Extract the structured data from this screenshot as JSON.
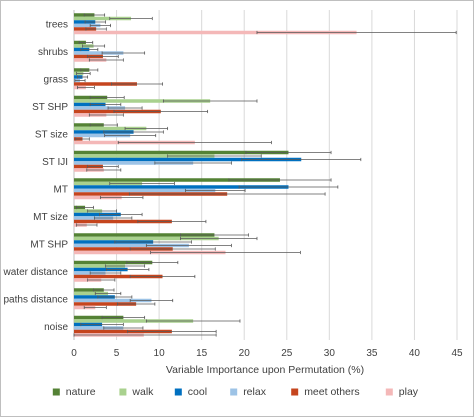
{
  "chart_data": {
    "type": "bar",
    "orientation": "horizontal",
    "title": "",
    "xlabel": "Variable Importance upon Permutation (%)",
    "ylabel": "",
    "xlim": [
      0,
      45
    ],
    "xticks": [
      0,
      5,
      10,
      15,
      20,
      25,
      30,
      35,
      40,
      45
    ],
    "grid": "vertical",
    "legend": "bottom",
    "categories": [
      "trees",
      "shrubs",
      "grass",
      "ST SHP",
      "ST size",
      "ST IJI",
      "MT",
      "MT size",
      "MT SHP",
      "water distance",
      "paths distance",
      "noise"
    ],
    "series": [
      {
        "name": "nature",
        "color": "#548235",
        "values": [
          2.4,
          1.4,
          1.8,
          3.9,
          3.5,
          25.2,
          24.2,
          1.3,
          16.5,
          9.2,
          3.5,
          5.8
        ],
        "errors": [
          1.2,
          0.8,
          1.0,
          2.0,
          1.6,
          5.0,
          6.0,
          1.0,
          4.0,
          3.0,
          1.2,
          2.5
        ]
      },
      {
        "name": "walk",
        "color": "#A9D18E",
        "values": [
          6.7,
          2.3,
          1.1,
          16.0,
          8.5,
          16.5,
          8.0,
          3.3,
          17.0,
          6.0,
          4.0,
          14.0
        ],
        "errors": [
          2.5,
          1.3,
          0.8,
          5.5,
          2.5,
          5.5,
          3.8,
          1.7,
          4.5,
          2.3,
          1.5,
          5.5
        ]
      },
      {
        "name": "cool",
        "color": "#0070C0",
        "values": [
          2.5,
          1.8,
          1.0,
          3.7,
          7.0,
          26.7,
          25.2,
          5.5,
          9.3,
          6.3,
          4.8,
          3.3
        ],
        "errors": [
          1.2,
          1.0,
          0.6,
          1.8,
          3.5,
          7.0,
          5.8,
          2.5,
          4.5,
          2.5,
          2.0,
          2.5
        ]
      },
      {
        "name": "relax",
        "color": "#9DC3E6",
        "values": [
          3.1,
          5.8,
          0.7,
          6.0,
          6.6,
          14.0,
          16.6,
          4.6,
          13.5,
          3.7,
          9.1,
          5.8
        ],
        "errors": [
          1.2,
          2.5,
          0.6,
          2.0,
          3.0,
          4.5,
          3.5,
          2.2,
          5.0,
          1.8,
          2.5,
          2.3
        ]
      },
      {
        "name": "meet others",
        "color": "#C5451E",
        "values": [
          2.6,
          3.4,
          7.4,
          10.2,
          1.0,
          3.4,
          18.0,
          11.5,
          11.6,
          10.4,
          7.3,
          11.5
        ],
        "errors": [
          1.2,
          1.8,
          3.0,
          5.5,
          0.8,
          1.8,
          11.5,
          4.0,
          5.0,
          3.8,
          2.2,
          5.2
        ]
      },
      {
        "name": "play",
        "color": "#F4B8B8",
        "values": [
          33.2,
          3.8,
          1.4,
          3.8,
          14.2,
          3.5,
          5.6,
          1.5,
          17.8,
          3.2,
          2.5,
          8.2
        ],
        "errors": [
          11.7,
          2.0,
          1.0,
          2.0,
          9.0,
          2.0,
          2.5,
          1.2,
          8.8,
          1.6,
          1.3,
          8.5
        ]
      }
    ]
  }
}
